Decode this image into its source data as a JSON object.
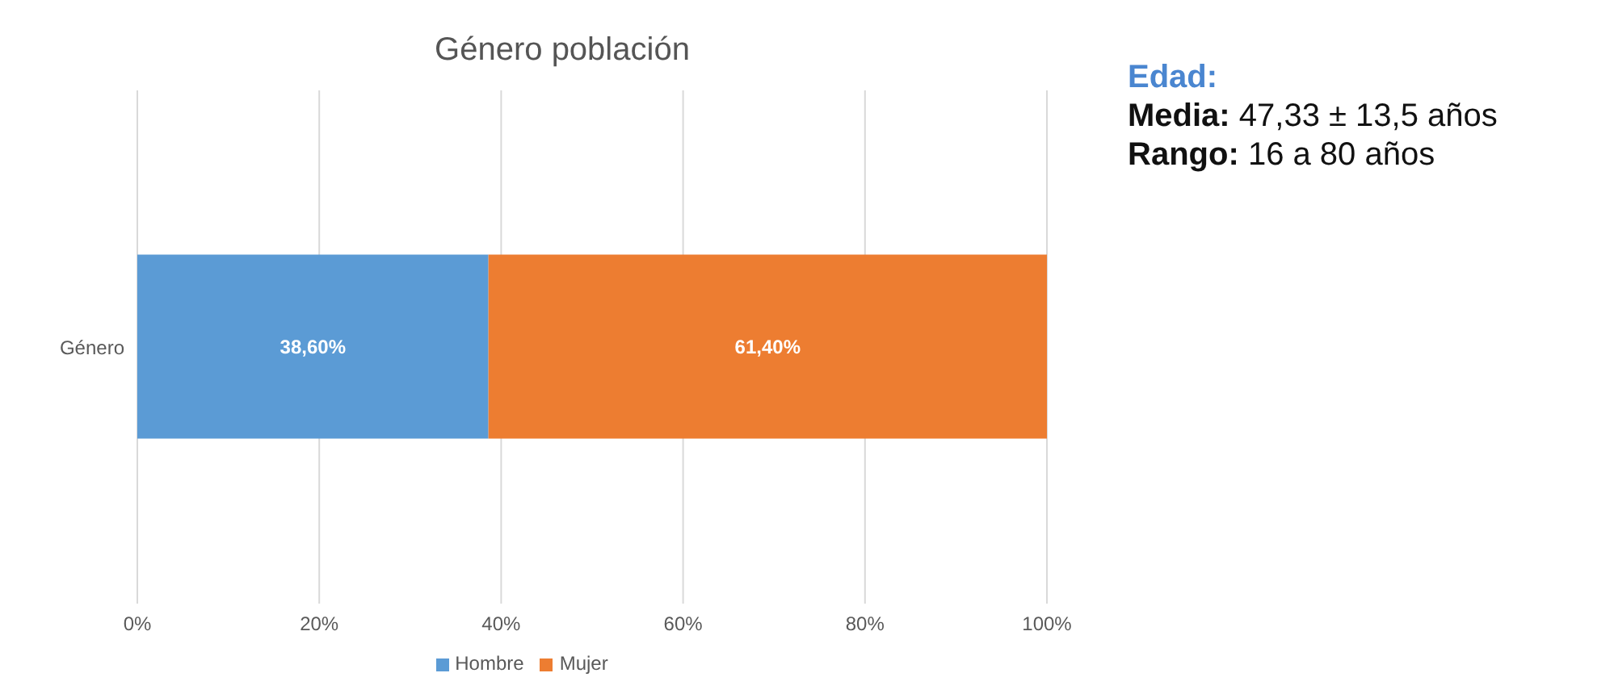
{
  "chart_data": {
    "type": "bar",
    "orientation": "horizontal",
    "stacked": true,
    "title": "Género población",
    "categories": [
      "Género"
    ],
    "series": [
      {
        "name": "Hombre",
        "color": "#5b9bd5",
        "values": [
          38.6
        ],
        "value_labels": [
          "38,60%"
        ]
      },
      {
        "name": "Mujer",
        "color": "#ed7d31",
        "values": [
          61.4
        ],
        "value_labels": [
          "61,40%"
        ]
      }
    ],
    "xlim": [
      0,
      100
    ],
    "xticks": [
      {
        "value": 0,
        "label": "0%"
      },
      {
        "value": 20,
        "label": "20%"
      },
      {
        "value": 40,
        "label": "40%"
      },
      {
        "value": 60,
        "label": "60%"
      },
      {
        "value": 80,
        "label": "80%"
      },
      {
        "value": 100,
        "label": "100%"
      }
    ],
    "grid": "x",
    "legend": "bottom",
    "annotations": [
      "Edad:",
      "Media: 47,33 ± 13,5 años",
      "Rango: 16 a 80 años"
    ]
  }
}
